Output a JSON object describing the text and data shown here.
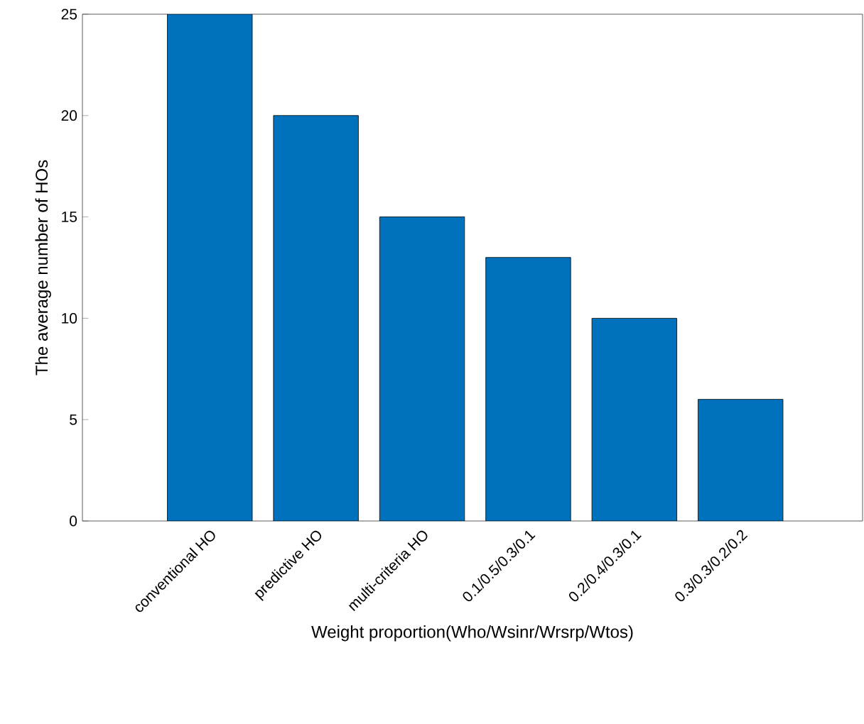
{
  "chart_data": {
    "type": "bar",
    "xlabel": "Weight proportion(Who/Wsinr/Wrsrp/Wtos)",
    "ylabel": "The average number of HOs",
    "categories": [
      "conventional HO",
      "predictive HO",
      "multi-criteria HO",
      "0.1/0.5/0.3/0.1",
      "0.2/0.4/0.3/0.1",
      "0.3/0.3/0.2/0.2"
    ],
    "values": [
      25,
      20,
      15,
      13,
      10,
      6
    ],
    "color": "#0072bd",
    "ylim": [
      0,
      25
    ],
    "yticks": [
      0,
      5,
      10,
      15,
      20,
      25
    ],
    "grid": false
  }
}
